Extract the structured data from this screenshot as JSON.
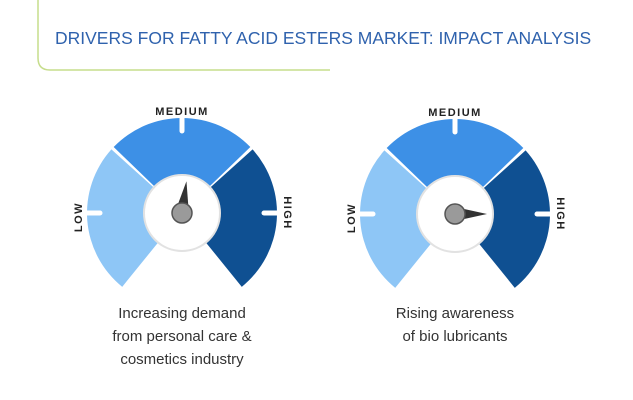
{
  "header": {
    "title": "DRIVERS FOR FATTY ACID ESTERS MARKET: IMPACT ANALYSIS"
  },
  "gauges": [
    {
      "labels": {
        "low": "LOW",
        "medium": "MEDIUM",
        "high": "HIGH"
      },
      "caption": [
        "Increasing demand",
        "from personal care &",
        "cosmetics industry"
      ]
    },
    {
      "labels": {
        "low": "LOW",
        "medium": "MEDIUM",
        "high": "HIGH"
      },
      "caption": [
        "Rising awareness",
        "of bio lubricants"
      ]
    }
  ]
}
